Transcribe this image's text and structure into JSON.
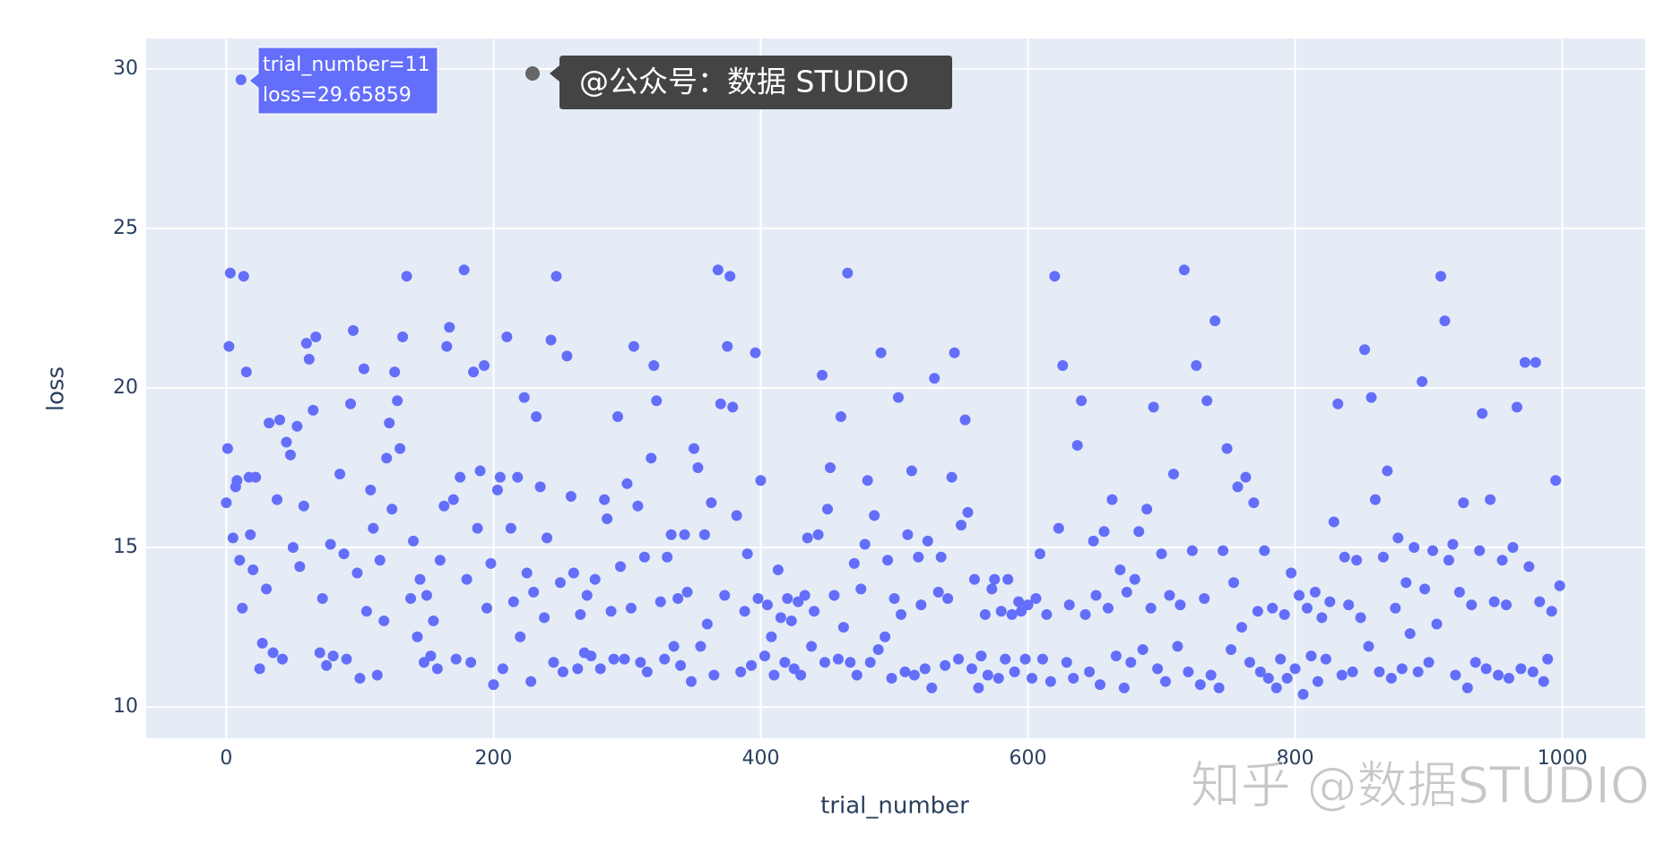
{
  "chart_data": {
    "type": "scatter",
    "x_label": "trial_number",
    "y_label": "loss",
    "color": "#636efa",
    "grid": true,
    "xlim": [
      -60,
      1062
    ],
    "ylim": [
      9.02,
      30.95
    ],
    "xticks": [
      0,
      200,
      400,
      600,
      800,
      1000
    ],
    "yticks": [
      10,
      15,
      20,
      25,
      30
    ],
    "hover_label": [
      "trial_number=11",
      "loss=29.65859"
    ],
    "annotations": [
      "@公众号：数据 STUDIO",
      "知乎 @数据STUDIO"
    ],
    "x": [
      0,
      1,
      2,
      3,
      5,
      7,
      8,
      10,
      11,
      12,
      13,
      15,
      17,
      18,
      20,
      22,
      25,
      27,
      30,
      32,
      35,
      38,
      40,
      42,
      45,
      48,
      50,
      53,
      55,
      58,
      60,
      62,
      65,
      67,
      70,
      72,
      75,
      78,
      80,
      85,
      88,
      90,
      93,
      95,
      98,
      100,
      103,
      105,
      108,
      110,
      113,
      115,
      118,
      120,
      122,
      124,
      126,
      128,
      130,
      132,
      135,
      138,
      140,
      143,
      145,
      148,
      150,
      153,
      155,
      158,
      160,
      163,
      165,
      167,
      170,
      172,
      175,
      178,
      180,
      183,
      185,
      188,
      190,
      193,
      195,
      198,
      200,
      203,
      205,
      207,
      210,
      213,
      215,
      218,
      220,
      223,
      225,
      228,
      230,
      232,
      235,
      238,
      240,
      243,
      245,
      247,
      250,
      252,
      255,
      258,
      260,
      263,
      265,
      268,
      270,
      273,
      276,
      280,
      283,
      285,
      288,
      290,
      293,
      295,
      298,
      300,
      303,
      305,
      308,
      310,
      313,
      315,
      318,
      320,
      322,
      325,
      328,
      330,
      333,
      335,
      338,
      340,
      343,
      345,
      348,
      350,
      353,
      355,
      358,
      360,
      363,
      365,
      368,
      370,
      373,
      375,
      377,
      379,
      382,
      385,
      388,
      390,
      393,
      396,
      398,
      400,
      403,
      405,
      408,
      410,
      413,
      415,
      418,
      420,
      423,
      425,
      428,
      430,
      433,
      435,
      438,
      440,
      443,
      446,
      448,
      450,
      452,
      455,
      458,
      460,
      462,
      465,
      467,
      470,
      472,
      475,
      478,
      480,
      482,
      485,
      488,
      490,
      493,
      495,
      498,
      500,
      503,
      505,
      508,
      510,
      513,
      515,
      518,
      520,
      523,
      525,
      528,
      530,
      533,
      535,
      538,
      540,
      543,
      545,
      548,
      550,
      553,
      555,
      558,
      560,
      563,
      565,
      568,
      570,
      573,
      575,
      578,
      580,
      583,
      585,
      588,
      590,
      593,
      595,
      598,
      600,
      603,
      606,
      609,
      611,
      614,
      617,
      620,
      623,
      626,
      629,
      631,
      634,
      637,
      640,
      643,
      646,
      649,
      651,
      654,
      657,
      660,
      663,
      666,
      669,
      672,
      674,
      677,
      680,
      683,
      686,
      689,
      692,
      694,
      697,
      700,
      703,
      706,
      709,
      712,
      714,
      717,
      720,
      723,
      726,
      729,
      732,
      734,
      737,
      740,
      743,
      746,
      749,
      752,
      754,
      757,
      760,
      763,
      766,
      769,
      772,
      774,
      777,
      780,
      783,
      786,
      789,
      792,
      794,
      797,
      800,
      803,
      806,
      809,
      812,
      815,
      817,
      820,
      823,
      826,
      829,
      832,
      835,
      837,
      840,
      843,
      846,
      849,
      852,
      855,
      857,
      860,
      863,
      866,
      869,
      872,
      875,
      877,
      880,
      883,
      886,
      889,
      892,
      895,
      897,
      900,
      903,
      906,
      909,
      912,
      915,
      918,
      920,
      923,
      926,
      929,
      932,
      935,
      938,
      940,
      943,
      946,
      949,
      952,
      955,
      958,
      960,
      963,
      966,
      969,
      972,
      975,
      978,
      980,
      983,
      986,
      989,
      992,
      995,
      998
    ],
    "values": [
      16.4,
      18.1,
      21.3,
      23.6,
      15.3,
      16.9,
      17.1,
      14.6,
      29.65859,
      13.1,
      23.5,
      20.5,
      17.2,
      15.4,
      14.3,
      17.2,
      11.2,
      12.0,
      13.7,
      18.9,
      11.7,
      16.5,
      19.0,
      11.5,
      18.3,
      17.9,
      15.0,
      18.8,
      14.4,
      16.3,
      21.4,
      20.9,
      19.3,
      21.6,
      11.7,
      13.4,
      11.3,
      15.1,
      11.6,
      17.3,
      14.8,
      11.5,
      19.5,
      21.8,
      14.2,
      10.9,
      20.6,
      13.0,
      16.8,
      15.6,
      11.0,
      14.6,
      12.7,
      17.8,
      18.9,
      16.2,
      20.5,
      19.6,
      18.1,
      21.6,
      23.5,
      13.4,
      15.2,
      12.2,
      14.0,
      11.4,
      13.5,
      11.6,
      12.7,
      11.2,
      14.6,
      16.3,
      21.3,
      21.9,
      16.5,
      11.5,
      17.2,
      23.7,
      14.0,
      11.4,
      20.5,
      15.6,
      17.4,
      20.7,
      13.1,
      14.5,
      10.7,
      16.8,
      17.2,
      11.2,
      21.6,
      15.6,
      13.3,
      17.2,
      12.2,
      19.7,
      14.2,
      10.8,
      13.6,
      19.1,
      16.9,
      12.8,
      15.3,
      21.5,
      11.4,
      23.5,
      13.9,
      11.1,
      21.0,
      16.6,
      14.2,
      11.2,
      12.9,
      11.7,
      13.5,
      11.6,
      14.0,
      11.2,
      16.5,
      15.9,
      13.0,
      11.5,
      19.1,
      14.4,
      11.5,
      17.0,
      13.1,
      21.3,
      16.3,
      11.4,
      14.7,
      11.1,
      17.8,
      20.7,
      19.6,
      13.3,
      11.5,
      14.7,
      15.4,
      11.9,
      13.4,
      11.3,
      15.4,
      13.6,
      10.8,
      18.1,
      17.5,
      11.9,
      15.4,
      12.6,
      16.4,
      11.0,
      23.7,
      19.5,
      13.5,
      21.3,
      23.5,
      19.4,
      16.0,
      11.1,
      13.0,
      14.8,
      11.3,
      21.1,
      13.4,
      17.1,
      11.6,
      13.2,
      12.2,
      11.0,
      14.3,
      12.8,
      11.4,
      13.4,
      12.7,
      11.2,
      13.3,
      11.0,
      13.5,
      15.3,
      11.9,
      13.0,
      15.4,
      20.4,
      11.4,
      16.2,
      17.5,
      13.5,
      11.5,
      19.1,
      12.5,
      23.6,
      11.4,
      14.5,
      11.0,
      13.7,
      15.1,
      17.1,
      11.4,
      16.0,
      11.8,
      21.1,
      12.2,
      14.6,
      10.9,
      13.4,
      19.7,
      12.9,
      11.1,
      15.4,
      17.4,
      11.0,
      14.7,
      13.2,
      11.2,
      15.2,
      10.6,
      20.3,
      13.6,
      14.7,
      11.3,
      13.4,
      17.2,
      21.1,
      11.5,
      15.7,
      19.0,
      16.1,
      11.2,
      14.0,
      10.6,
      11.6,
      12.9,
      11.0,
      13.7,
      14.0,
      10.9,
      13.0,
      11.5,
      14.0,
      12.9,
      11.1,
      13.3,
      13.0,
      11.5,
      13.2,
      10.9,
      13.4,
      14.8,
      11.5,
      12.9,
      10.8,
      23.5,
      15.6,
      20.7,
      11.4,
      13.2,
      10.9,
      18.2,
      19.6,
      12.9,
      11.1,
      15.2,
      13.5,
      10.7,
      15.5,
      13.1,
      16.5,
      11.6,
      14.3,
      10.6,
      13.6,
      11.4,
      14.0,
      15.5,
      11.8,
      16.2,
      13.1,
      19.4,
      11.2,
      14.8,
      10.8,
      13.5,
      17.3,
      11.9,
      13.2,
      23.7,
      11.1,
      14.9,
      20.7,
      10.7,
      13.4,
      19.6,
      11.0,
      22.1,
      10.6,
      14.9,
      18.1,
      11.8,
      13.9,
      16.9,
      12.5,
      17.2,
      11.4,
      16.4,
      13.0,
      11.1,
      14.9,
      10.9,
      13.1,
      10.6,
      11.5,
      12.9,
      10.9,
      14.2,
      11.2,
      13.5,
      10.4,
      13.1,
      11.6,
      13.6,
      10.8,
      12.8,
      11.5,
      13.3,
      15.8,
      19.5,
      11.0,
      14.7,
      13.2,
      11.1,
      14.6,
      12.8,
      21.2,
      11.9,
      19.7,
      16.5,
      11.1,
      14.7,
      17.4,
      10.9,
      13.1,
      15.3,
      11.2,
      13.9,
      12.3,
      15.0,
      11.1,
      20.2,
      13.7,
      11.4,
      14.9,
      12.6,
      23.5,
      22.1,
      14.6,
      15.1,
      11.0,
      13.6,
      16.4,
      10.6,
      13.2,
      11.4,
      14.9,
      19.2,
      11.2,
      16.5,
      13.3,
      11.0,
      14.6,
      13.2,
      10.9,
      15.0,
      19.4,
      11.2,
      20.8,
      14.4,
      11.1,
      20.8,
      13.3,
      10.8,
      11.5,
      13.0,
      17.1,
      13.8
    ]
  }
}
